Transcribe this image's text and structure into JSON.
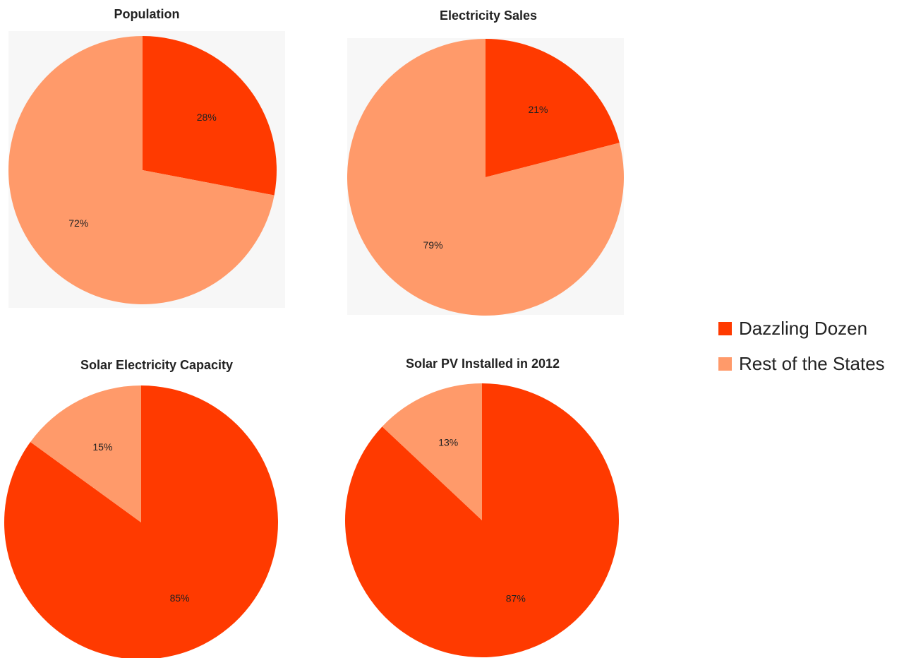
{
  "legend_colors": {
    "Dazzling Dozen": "#FF3A00",
    "Rest of the States": "#FF9A6A"
  },
  "legend": [
    "Dazzling Dozen",
    "Rest of the States"
  ],
  "chart_data": [
    {
      "type": "pie",
      "title": "Population",
      "slices": [
        {
          "name": "Dazzling Dozen",
          "value": 28,
          "label": "28%"
        },
        {
          "name": "Rest of the States",
          "value": 72,
          "label": "72%"
        }
      ]
    },
    {
      "type": "pie",
      "title": "Electricity Sales",
      "slices": [
        {
          "name": "Dazzling Dozen",
          "value": 21,
          "label": "21%"
        },
        {
          "name": "Rest of the States",
          "value": 79,
          "label": "79%"
        }
      ]
    },
    {
      "type": "pie",
      "title": "Solar Electricity Capacity",
      "slices": [
        {
          "name": "Dazzling Dozen",
          "value": 85,
          "label": "85%"
        },
        {
          "name": "Rest of the States",
          "value": 15,
          "label": "15%"
        }
      ]
    },
    {
      "type": "pie",
      "title": "Solar PV Installed in 2012",
      "slices": [
        {
          "name": "Dazzling Dozen",
          "value": 87,
          "label": "87%"
        },
        {
          "name": "Rest of the States",
          "value": 13,
          "label": "13%"
        }
      ]
    }
  ]
}
